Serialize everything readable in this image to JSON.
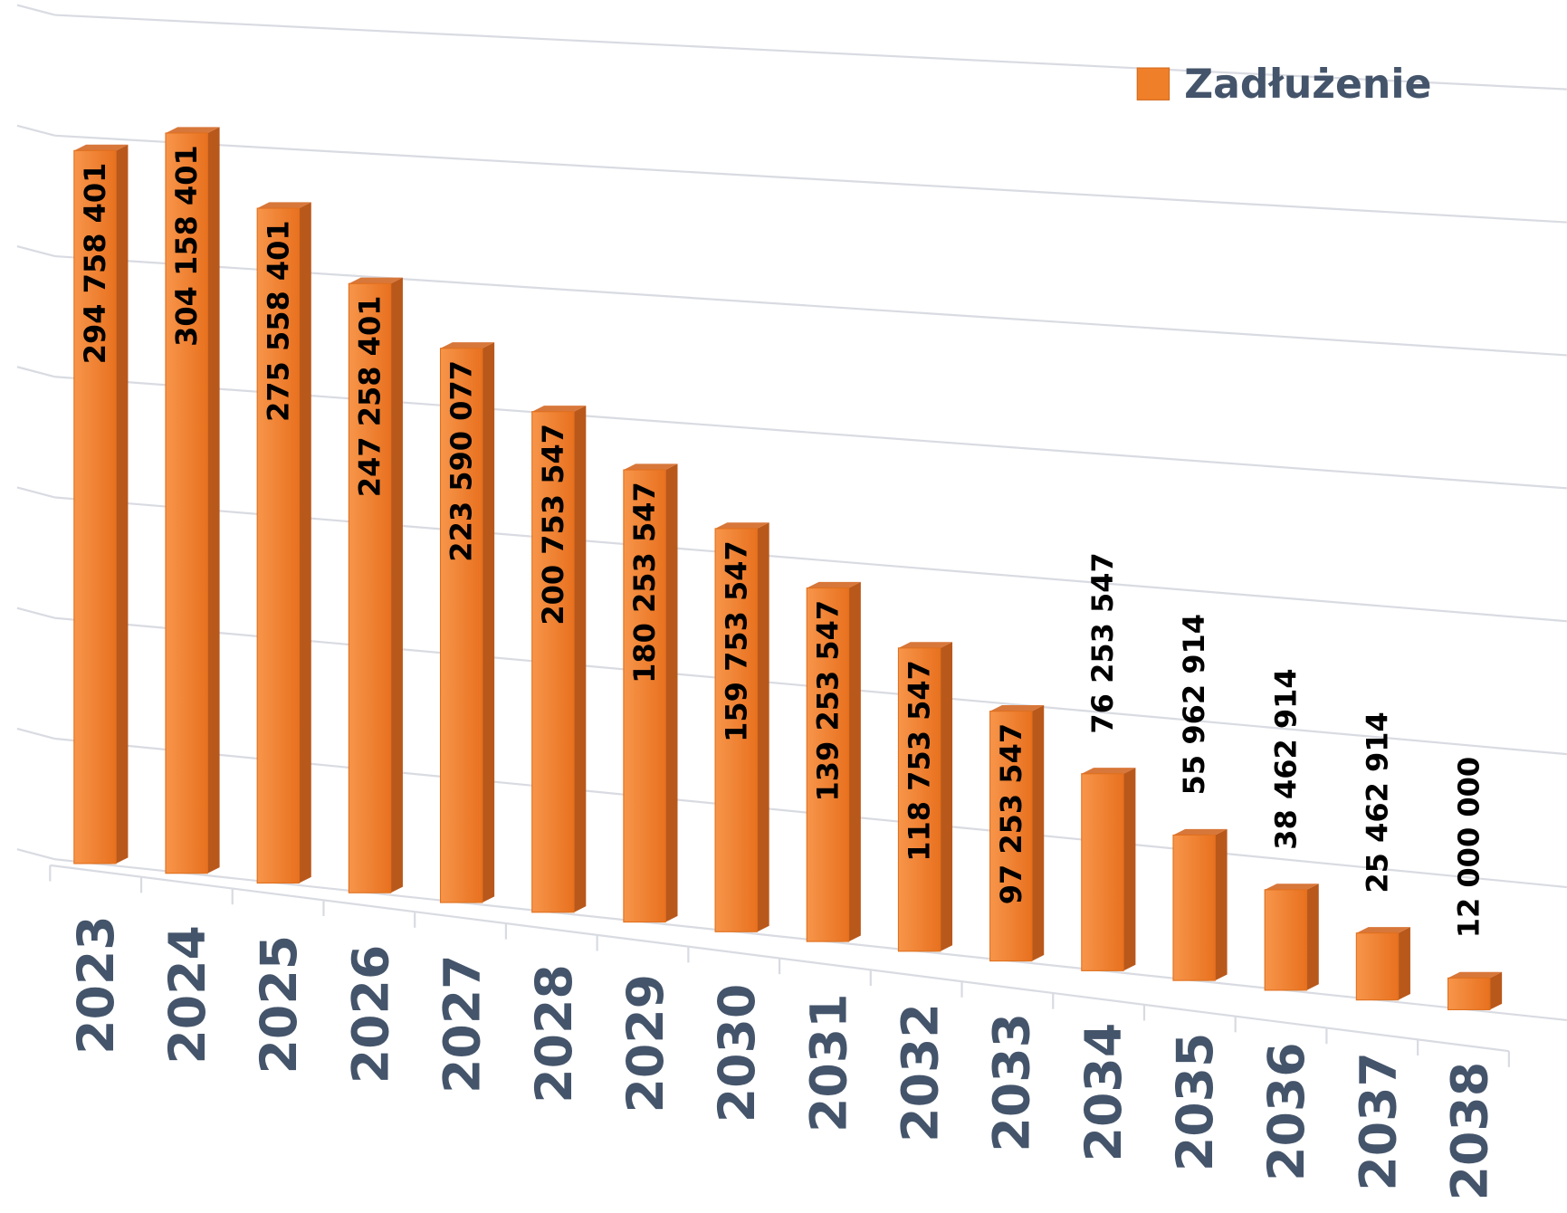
{
  "chart_data": {
    "type": "bar3d",
    "categories": [
      "2023",
      "2024",
      "2025",
      "2026",
      "2027",
      "2028",
      "2029",
      "2030",
      "2031",
      "2032",
      "2033",
      "2034",
      "2035",
      "2036",
      "2037",
      "2038"
    ],
    "series": [
      {
        "name": "Zadłużenie",
        "color": "#f07f2a",
        "values": [
          294758401,
          304158401,
          275558401,
          247258401,
          223590077,
          200753547,
          180253547,
          159753547,
          139253547,
          118753547,
          97253547,
          76253547,
          55962914,
          38462914,
          25462914,
          12000000
        ],
        "value_labels": [
          "294 758 401",
          "304 158 401",
          "275 558 401",
          "247 258 401",
          "223 590 077",
          "200 753 547",
          "180 253 547",
          "159 753 547",
          "139 253 547",
          "118 753 547",
          "97 253 547",
          "76 253 547",
          "55 962 914",
          "38 462 914",
          "25 462 914",
          "12 000 000"
        ]
      }
    ],
    "ylim": [
      0,
      350000000
    ],
    "yticks": [
      0,
      50000000,
      100000000,
      150000000,
      200000000,
      250000000,
      300000000,
      350000000
    ],
    "grid": true,
    "legend": "top-right"
  }
}
